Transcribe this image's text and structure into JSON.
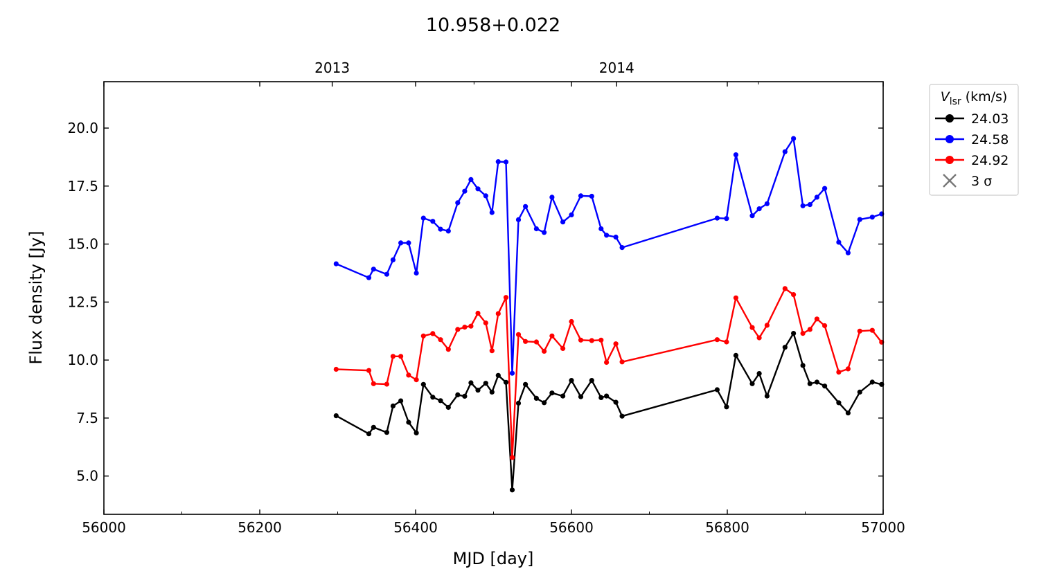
{
  "chart_data": {
    "type": "line",
    "title": "10.958+0.022",
    "xlabel": "MJD [day]",
    "ylabel": "Flux density [Jy]",
    "xlim": [
      56000,
      57000
    ],
    "ylim": [
      3.35,
      22.0
    ],
    "x_ticks": [
      {
        "value": 56000,
        "label": "56000"
      },
      {
        "value": 56200,
        "label": "56200"
      },
      {
        "value": 56400,
        "label": "56400"
      },
      {
        "value": 56600,
        "label": "56600"
      },
      {
        "value": 56800,
        "label": "56800"
      },
      {
        "value": 57000,
        "label": "57000"
      }
    ],
    "x_minor_ticks": [
      56100,
      56300,
      56500,
      56700,
      56900
    ],
    "y_ticks": [
      {
        "value": 5.0,
        "label": "5.0"
      },
      {
        "value": 7.5,
        "label": "7.5"
      },
      {
        "value": 10.0,
        "label": "10.0"
      },
      {
        "value": 12.5,
        "label": "12.5"
      },
      {
        "value": 15.0,
        "label": "15.0"
      },
      {
        "value": 17.5,
        "label": "17.5"
      },
      {
        "value": 20.0,
        "label": "20.0"
      }
    ],
    "top_axis_ticks": [
      {
        "value": 56293,
        "label": "2013"
      },
      {
        "value": 56658,
        "label": "2014"
      }
    ],
    "top_axis_minor_ticks": [
      56475,
      56840
    ],
    "grid": false,
    "legend": {
      "position": "outside-right",
      "title_main": "V",
      "title_sub": "lsr",
      "title_unit": "(km/s)",
      "marker_entry": {
        "label": "3 σ",
        "marker": "x",
        "color": "#777777"
      }
    },
    "series": [
      {
        "name": "24.03",
        "color": "#000000",
        "points": [
          [
            56298,
            7.6
          ],
          [
            56340,
            6.82
          ],
          [
            56346,
            7.1
          ],
          [
            56363,
            6.88
          ],
          [
            56371,
            8.02
          ],
          [
            56381,
            8.24
          ],
          [
            56391,
            7.32
          ],
          [
            56401,
            6.86
          ],
          [
            56410,
            8.95
          ],
          [
            56422,
            8.4
          ],
          [
            56432,
            8.25
          ],
          [
            56442,
            7.96
          ],
          [
            56454,
            8.5
          ],
          [
            56463,
            8.44
          ],
          [
            56471,
            9.02
          ],
          [
            56480,
            8.7
          ],
          [
            56490,
            9.0
          ],
          [
            56498,
            8.62
          ],
          [
            56506,
            9.34
          ],
          [
            56516,
            9.04
          ],
          [
            56524,
            4.4
          ],
          [
            56532,
            8.14
          ],
          [
            56541,
            8.95
          ],
          [
            56555,
            8.35
          ],
          [
            56565,
            8.16
          ],
          [
            56575,
            8.58
          ],
          [
            56589,
            8.45
          ],
          [
            56600,
            9.12
          ],
          [
            56612,
            8.42
          ],
          [
            56626,
            9.12
          ],
          [
            56638,
            8.38
          ],
          [
            56645,
            8.45
          ],
          [
            56657,
            8.18
          ],
          [
            56665,
            7.58
          ],
          [
            56787,
            8.72
          ],
          [
            56799,
            7.98
          ],
          [
            56811,
            10.2
          ],
          [
            56832,
            8.98
          ],
          [
            56841,
            9.42
          ],
          [
            56851,
            8.45
          ],
          [
            56874,
            10.55
          ],
          [
            56885,
            11.15
          ],
          [
            56897,
            9.77
          ],
          [
            56906,
            8.98
          ],
          [
            56915,
            9.05
          ],
          [
            56925,
            8.88
          ],
          [
            56943,
            8.16
          ],
          [
            56955,
            7.72
          ],
          [
            56970,
            8.62
          ],
          [
            56986,
            9.05
          ],
          [
            56998,
            8.95
          ]
        ]
      },
      {
        "name": "24.58",
        "color": "#0000ff",
        "points": [
          [
            56298,
            14.15
          ],
          [
            56340,
            13.55
          ],
          [
            56346,
            13.92
          ],
          [
            56363,
            13.7
          ],
          [
            56371,
            14.32
          ],
          [
            56381,
            15.05
          ],
          [
            56391,
            15.05
          ],
          [
            56401,
            13.75
          ],
          [
            56410,
            16.12
          ],
          [
            56422,
            15.98
          ],
          [
            56432,
            15.64
          ],
          [
            56442,
            15.56
          ],
          [
            56454,
            16.78
          ],
          [
            56463,
            17.28
          ],
          [
            56471,
            17.78
          ],
          [
            56480,
            17.38
          ],
          [
            56490,
            17.08
          ],
          [
            56498,
            16.36
          ],
          [
            56506,
            18.55
          ],
          [
            56516,
            18.54
          ],
          [
            56524,
            9.43
          ],
          [
            56532,
            16.05
          ],
          [
            56541,
            16.62
          ],
          [
            56555,
            15.66
          ],
          [
            56565,
            15.5
          ],
          [
            56575,
            17.02
          ],
          [
            56589,
            15.95
          ],
          [
            56600,
            16.26
          ],
          [
            56612,
            17.08
          ],
          [
            56626,
            17.06
          ],
          [
            56638,
            15.66
          ],
          [
            56645,
            15.38
          ],
          [
            56657,
            15.3
          ],
          [
            56665,
            14.85
          ],
          [
            56787,
            16.12
          ],
          [
            56799,
            16.1
          ],
          [
            56811,
            18.85
          ],
          [
            56832,
            16.22
          ],
          [
            56841,
            16.52
          ],
          [
            56851,
            16.74
          ],
          [
            56874,
            18.98
          ],
          [
            56885,
            19.55
          ],
          [
            56897,
            16.65
          ],
          [
            56906,
            16.7
          ],
          [
            56915,
            17.02
          ],
          [
            56925,
            17.4
          ],
          [
            56943,
            15.08
          ],
          [
            56955,
            14.62
          ],
          [
            56970,
            16.06
          ],
          [
            56986,
            16.16
          ],
          [
            56998,
            16.3
          ]
        ]
      },
      {
        "name": "24.92",
        "color": "#ff0000",
        "points": [
          [
            56298,
            9.6
          ],
          [
            56340,
            9.55
          ],
          [
            56346,
            8.98
          ],
          [
            56363,
            8.96
          ],
          [
            56371,
            10.16
          ],
          [
            56381,
            10.16
          ],
          [
            56391,
            9.35
          ],
          [
            56401,
            9.15
          ],
          [
            56410,
            11.04
          ],
          [
            56422,
            11.14
          ],
          [
            56432,
            10.88
          ],
          [
            56442,
            10.46
          ],
          [
            56454,
            11.32
          ],
          [
            56463,
            11.42
          ],
          [
            56471,
            11.46
          ],
          [
            56480,
            12.02
          ],
          [
            56490,
            11.6
          ],
          [
            56498,
            10.4
          ],
          [
            56506,
            12.0
          ],
          [
            56516,
            12.7
          ],
          [
            56524,
            5.8
          ],
          [
            56532,
            11.1
          ],
          [
            56541,
            10.8
          ],
          [
            56555,
            10.78
          ],
          [
            56565,
            10.38
          ],
          [
            56575,
            11.04
          ],
          [
            56589,
            10.5
          ],
          [
            56600,
            11.66
          ],
          [
            56612,
            10.86
          ],
          [
            56626,
            10.84
          ],
          [
            56638,
            10.86
          ],
          [
            56645,
            9.9
          ],
          [
            56657,
            10.7
          ],
          [
            56665,
            9.92
          ],
          [
            56787,
            10.88
          ],
          [
            56799,
            10.78
          ],
          [
            56811,
            12.68
          ],
          [
            56832,
            11.4
          ],
          [
            56841,
            10.96
          ],
          [
            56851,
            11.5
          ],
          [
            56874,
            13.08
          ],
          [
            56885,
            12.82
          ],
          [
            56897,
            11.15
          ],
          [
            56906,
            11.32
          ],
          [
            56915,
            11.77
          ],
          [
            56925,
            11.48
          ],
          [
            56943,
            9.48
          ],
          [
            56955,
            9.62
          ],
          [
            56970,
            11.25
          ],
          [
            56986,
            11.28
          ],
          [
            56998,
            10.77
          ]
        ]
      }
    ]
  }
}
